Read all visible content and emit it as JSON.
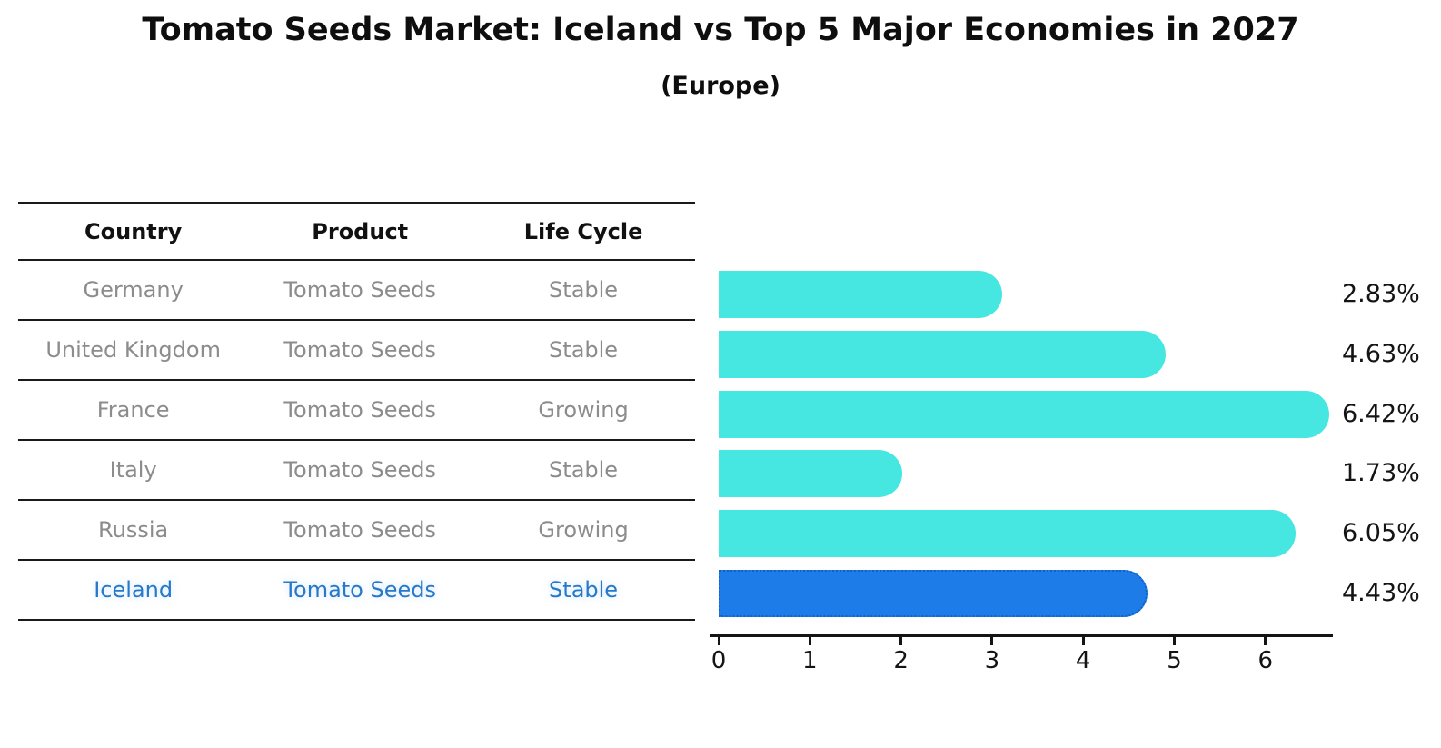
{
  "title": "Tomato Seeds Market: Iceland vs Top 5 Major Economies in 2027",
  "subtitle": "(Europe)",
  "table": {
    "headers": [
      "Country",
      "Product",
      "Life Cycle"
    ],
    "rows": [
      {
        "country": "Germany",
        "product": "Tomato Seeds",
        "life_cycle": "Stable",
        "highlight": false
      },
      {
        "country": "United Kingdom",
        "product": "Tomato Seeds",
        "life_cycle": "Stable",
        "highlight": false
      },
      {
        "country": "France",
        "product": "Tomato Seeds",
        "life_cycle": "Growing",
        "highlight": false
      },
      {
        "country": "Italy",
        "product": "Tomato Seeds",
        "life_cycle": "Stable",
        "highlight": false
      },
      {
        "country": "Russia",
        "product": "Tomato Seeds",
        "life_cycle": "Growing",
        "highlight": false
      },
      {
        "country": "Iceland",
        "product": "Tomato Seeds",
        "life_cycle": "Stable",
        "highlight": true
      }
    ]
  },
  "chart_data": {
    "type": "bar",
    "orientation": "horizontal",
    "title": "Tomato Seeds Market: Iceland vs Top 5 Major Economies in 2027",
    "subtitle": "(Europe)",
    "categories": [
      "Germany",
      "United Kingdom",
      "France",
      "Italy",
      "Russia",
      "Iceland"
    ],
    "values": [
      2.83,
      4.63,
      6.42,
      1.73,
      6.05,
      4.43
    ],
    "value_labels": [
      "2.83%",
      "4.63%",
      "6.42%",
      "1.73%",
      "6.05%",
      "4.43%"
    ],
    "x_ticks": [
      0,
      1,
      2,
      3,
      4,
      5,
      6
    ],
    "xlim": [
      0,
      6.75
    ],
    "grid": false,
    "legend": false,
    "highlight_index": 5,
    "bar_color": "#46e6e1",
    "highlight_color": "#1d7ce8",
    "highlight_border_color": "#1161c9"
  },
  "colors": {
    "text_primary": "#141414",
    "text_muted": "#8c8c8c",
    "highlight_text": "#2878c8"
  }
}
